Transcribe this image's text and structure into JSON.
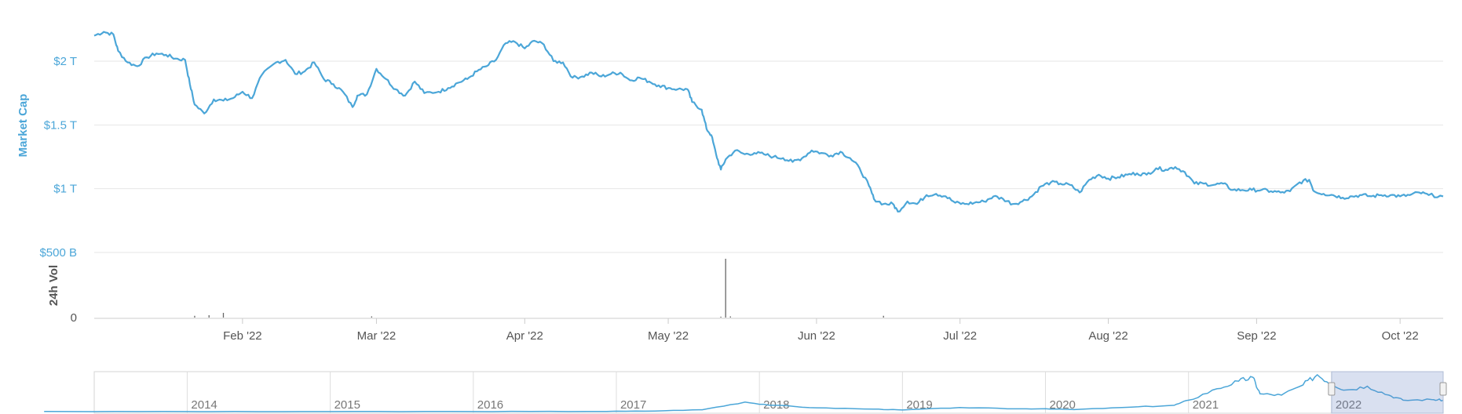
{
  "colors": {
    "line": "#4ba6d8",
    "grid": "#e6e6e6",
    "volume": "#666666",
    "navigator_mask": "rgba(102,133,194,0.25)",
    "axis_text_primary": "#4ba6d8",
    "axis_text_secondary": "#555555"
  },
  "chart_data": {
    "type": "line",
    "title": "",
    "ylabel": "Market Cap",
    "ylabel_secondary": "24h Vol",
    "y_ticks": [
      "$2 T",
      "$1.5 T",
      "$1 T",
      "$500 B"
    ],
    "y_tick_values": [
      2000,
      1500,
      1000,
      500
    ],
    "ylim": [
      500,
      2300
    ],
    "y_unit": "billion USD",
    "volume_zero_label": "0",
    "x_ticks": [
      "Feb '22",
      "Mar '22",
      "Apr '22",
      "May '22",
      "Jun '22",
      "Jul '22",
      "Aug '22",
      "Sep '22",
      "Oct '22"
    ],
    "x_range": [
      "2022-01-01",
      "2022-10-10"
    ],
    "grid": true,
    "series": [
      {
        "name": "Market Cap",
        "points": [
          [
            "2022-01-01",
            2200
          ],
          [
            "2022-01-03",
            2230
          ],
          [
            "2022-01-05",
            2210
          ],
          [
            "2022-01-06",
            2080
          ],
          [
            "2022-01-08",
            1990
          ],
          [
            "2022-01-10",
            1960
          ],
          [
            "2022-01-12",
            2030
          ],
          [
            "2022-01-14",
            2060
          ],
          [
            "2022-01-16",
            2050
          ],
          [
            "2022-01-18",
            2020
          ],
          [
            "2022-01-20",
            2010
          ],
          [
            "2022-01-21",
            1820
          ],
          [
            "2022-01-22",
            1660
          ],
          [
            "2022-01-24",
            1590
          ],
          [
            "2022-01-26",
            1700
          ],
          [
            "2022-01-28",
            1690
          ],
          [
            "2022-01-30",
            1710
          ],
          [
            "2022-02-01",
            1760
          ],
          [
            "2022-02-03",
            1710
          ],
          [
            "2022-02-05",
            1890
          ],
          [
            "2022-02-08",
            1990
          ],
          [
            "2022-02-10",
            2010
          ],
          [
            "2022-02-12",
            1900
          ],
          [
            "2022-02-14",
            1920
          ],
          [
            "2022-02-16",
            1990
          ],
          [
            "2022-02-18",
            1860
          ],
          [
            "2022-02-20",
            1820
          ],
          [
            "2022-02-22",
            1760
          ],
          [
            "2022-02-24",
            1640
          ],
          [
            "2022-02-25",
            1730
          ],
          [
            "2022-02-27",
            1740
          ],
          [
            "2022-03-01",
            1940
          ],
          [
            "2022-03-03",
            1860
          ],
          [
            "2022-03-05",
            1780
          ],
          [
            "2022-03-07",
            1730
          ],
          [
            "2022-03-09",
            1840
          ],
          [
            "2022-03-11",
            1750
          ],
          [
            "2022-03-14",
            1760
          ],
          [
            "2022-03-16",
            1790
          ],
          [
            "2022-03-18",
            1830
          ],
          [
            "2022-03-20",
            1860
          ],
          [
            "2022-03-22",
            1920
          ],
          [
            "2022-03-24",
            1960
          ],
          [
            "2022-03-26",
            2010
          ],
          [
            "2022-03-28",
            2140
          ],
          [
            "2022-03-30",
            2150
          ],
          [
            "2022-04-01",
            2100
          ],
          [
            "2022-04-03",
            2160
          ],
          [
            "2022-04-05",
            2130
          ],
          [
            "2022-04-07",
            2000
          ],
          [
            "2022-04-09",
            1990
          ],
          [
            "2022-04-11",
            1870
          ],
          [
            "2022-04-13",
            1880
          ],
          [
            "2022-04-15",
            1910
          ],
          [
            "2022-04-17",
            1880
          ],
          [
            "2022-04-19",
            1900
          ],
          [
            "2022-04-21",
            1910
          ],
          [
            "2022-04-23",
            1850
          ],
          [
            "2022-04-25",
            1870
          ],
          [
            "2022-04-27",
            1840
          ],
          [
            "2022-04-29",
            1810
          ],
          [
            "2022-05-01",
            1790
          ],
          [
            "2022-05-03",
            1780
          ],
          [
            "2022-05-05",
            1780
          ],
          [
            "2022-05-06",
            1680
          ],
          [
            "2022-05-08",
            1620
          ],
          [
            "2022-05-09",
            1470
          ],
          [
            "2022-05-10",
            1420
          ],
          [
            "2022-05-11",
            1270
          ],
          [
            "2022-05-12",
            1150
          ],
          [
            "2022-05-13",
            1230
          ],
          [
            "2022-05-15",
            1300
          ],
          [
            "2022-05-17",
            1270
          ],
          [
            "2022-05-19",
            1280
          ],
          [
            "2022-05-21",
            1270
          ],
          [
            "2022-05-23",
            1250
          ],
          [
            "2022-05-25",
            1240
          ],
          [
            "2022-05-27",
            1210
          ],
          [
            "2022-05-29",
            1240
          ],
          [
            "2022-05-31",
            1300
          ],
          [
            "2022-06-02",
            1280
          ],
          [
            "2022-06-04",
            1260
          ],
          [
            "2022-06-06",
            1290
          ],
          [
            "2022-06-08",
            1240
          ],
          [
            "2022-06-10",
            1160
          ],
          [
            "2022-06-12",
            1020
          ],
          [
            "2022-06-13",
            920
          ],
          [
            "2022-06-15",
            880
          ],
          [
            "2022-06-17",
            880
          ],
          [
            "2022-06-18",
            820
          ],
          [
            "2022-06-20",
            900
          ],
          [
            "2022-06-22",
            880
          ],
          [
            "2022-06-24",
            950
          ],
          [
            "2022-06-26",
            960
          ],
          [
            "2022-06-28",
            940
          ],
          [
            "2022-06-30",
            890
          ],
          [
            "2022-07-02",
            880
          ],
          [
            "2022-07-04",
            890
          ],
          [
            "2022-07-06",
            900
          ],
          [
            "2022-07-08",
            940
          ],
          [
            "2022-07-10",
            920
          ],
          [
            "2022-07-12",
            880
          ],
          [
            "2022-07-14",
            900
          ],
          [
            "2022-07-16",
            940
          ],
          [
            "2022-07-18",
            1020
          ],
          [
            "2022-07-20",
            1050
          ],
          [
            "2022-07-22",
            1040
          ],
          [
            "2022-07-24",
            1030
          ],
          [
            "2022-07-26",
            970
          ],
          [
            "2022-07-28",
            1070
          ],
          [
            "2022-07-30",
            1110
          ],
          [
            "2022-08-01",
            1080
          ],
          [
            "2022-08-03",
            1090
          ],
          [
            "2022-08-05",
            1110
          ],
          [
            "2022-08-07",
            1120
          ],
          [
            "2022-08-09",
            1110
          ],
          [
            "2022-08-11",
            1160
          ],
          [
            "2022-08-13",
            1150
          ],
          [
            "2022-08-15",
            1170
          ],
          [
            "2022-08-17",
            1130
          ],
          [
            "2022-08-19",
            1040
          ],
          [
            "2022-08-21",
            1040
          ],
          [
            "2022-08-23",
            1030
          ],
          [
            "2022-08-25",
            1040
          ],
          [
            "2022-08-27",
            990
          ],
          [
            "2022-08-29",
            990
          ],
          [
            "2022-08-31",
            990
          ],
          [
            "2022-09-02",
            990
          ],
          [
            "2022-09-04",
            980
          ],
          [
            "2022-09-06",
            970
          ],
          [
            "2022-09-08",
            980
          ],
          [
            "2022-09-10",
            1050
          ],
          [
            "2022-09-12",
            1070
          ],
          [
            "2022-09-13",
            980
          ],
          [
            "2022-09-15",
            960
          ],
          [
            "2022-09-17",
            950
          ],
          [
            "2022-09-19",
            930
          ],
          [
            "2022-09-21",
            940
          ],
          [
            "2022-09-23",
            950
          ],
          [
            "2022-09-25",
            940
          ],
          [
            "2022-09-27",
            950
          ],
          [
            "2022-09-29",
            950
          ],
          [
            "2022-10-01",
            940
          ],
          [
            "2022-10-03",
            950
          ],
          [
            "2022-10-05",
            970
          ],
          [
            "2022-10-07",
            950
          ],
          [
            "2022-10-10",
            940
          ]
        ]
      }
    ],
    "volume_series": [
      [
        "2022-01-22",
        3
      ],
      [
        "2022-01-25",
        4
      ],
      [
        "2022-01-28",
        8
      ],
      [
        "2022-02-28",
        2
      ],
      [
        "2022-05-12",
        1.5
      ],
      [
        "2022-05-13",
        100
      ],
      [
        "2022-05-14",
        2
      ],
      [
        "2022-06-15",
        3
      ]
    ],
    "navigator": {
      "labels": [
        "2014",
        "2015",
        "2016",
        "2017",
        "2018",
        "2019",
        "2020",
        "2021",
        "2022"
      ],
      "points": [
        [
          2013.0,
          0.1
        ],
        [
          2014.0,
          0.05
        ],
        [
          2015.0,
          0.04
        ],
        [
          2016.0,
          0.08
        ],
        [
          2016.8,
          0.2
        ],
        [
          2017.2,
          0.35
        ],
        [
          2017.6,
          1.5
        ],
        [
          2017.9,
          7.5
        ],
        [
          2018.1,
          5
        ],
        [
          2018.4,
          3
        ],
        [
          2018.8,
          2
        ],
        [
          2019.0,
          1.3
        ],
        [
          2019.4,
          3.2
        ],
        [
          2019.8,
          2.2
        ],
        [
          2020.0,
          2.3
        ],
        [
          2020.2,
          1.6
        ],
        [
          2020.6,
          3.5
        ],
        [
          2020.9,
          5
        ],
        [
          2021.0,
          9
        ],
        [
          2021.2,
          18
        ],
        [
          2021.35,
          24
        ],
        [
          2021.45,
          27
        ],
        [
          2021.5,
          14
        ],
        [
          2021.65,
          13
        ],
        [
          2021.8,
          21
        ],
        [
          2021.9,
          29
        ],
        [
          2022.0,
          22
        ],
        [
          2022.1,
          17
        ],
        [
          2022.25,
          20
        ],
        [
          2022.4,
          13
        ],
        [
          2022.5,
          9
        ],
        [
          2022.7,
          9.5
        ],
        [
          2022.78,
          9
        ]
      ],
      "selected_range": [
        2022.0,
        2022.78
      ]
    }
  }
}
